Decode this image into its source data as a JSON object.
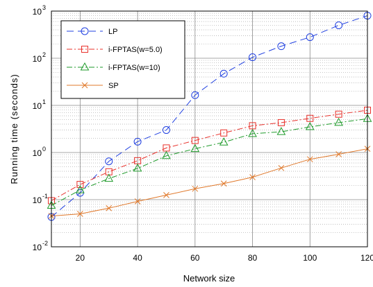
{
  "chart_data": {
    "type": "line",
    "xlabel": "Network size",
    "ylabel": "Running time (seconds)",
    "xlim": [
      10,
      120
    ],
    "ylim": [
      0.01,
      1000
    ],
    "yscale": "log",
    "xticks": [
      20,
      40,
      60,
      80,
      100,
      120
    ],
    "yticks": [
      {
        "base": "10",
        "exp": "-2",
        "value": 0.01
      },
      {
        "base": "10",
        "exp": "-1",
        "value": 0.1
      },
      {
        "base": "10",
        "exp": "0",
        "value": 1
      },
      {
        "base": "10",
        "exp": "1",
        "value": 10
      },
      {
        "base": "10",
        "exp": "2",
        "value": 100
      },
      {
        "base": "10",
        "exp": "3",
        "value": 1000
      }
    ],
    "grid": true,
    "legend_position": "top-left",
    "x": [
      10,
      20,
      30,
      40,
      50,
      60,
      70,
      80,
      90,
      100,
      110,
      120
    ],
    "series": [
      {
        "name": "LP",
        "color": "#1f3fe0",
        "marker": "circle",
        "dash": "10,6",
        "values": [
          0.043,
          0.14,
          0.65,
          1.7,
          3.0,
          16.5,
          47,
          105,
          180,
          280,
          500,
          800
        ]
      },
      {
        "name": "i-FPTAS(w=5.0)",
        "color": "#e8302a",
        "marker": "square",
        "dash": "8,3,2,3",
        "values": [
          0.095,
          0.21,
          0.39,
          0.67,
          1.25,
          1.8,
          2.6,
          3.7,
          4.3,
          5.3,
          6.5,
          7.9
        ]
      },
      {
        "name": "i-FPTAS(w=10)",
        "color": "#1e9a2a",
        "marker": "triangle",
        "dash": "8,3,2,3",
        "values": [
          0.075,
          0.16,
          0.28,
          0.46,
          0.85,
          1.2,
          1.65,
          2.5,
          2.75,
          3.5,
          4.3,
          5.2
        ]
      },
      {
        "name": "SP",
        "color": "#e0782a",
        "marker": "x",
        "dash": "",
        "values": [
          0.045,
          0.05,
          0.066,
          0.092,
          0.125,
          0.17,
          0.22,
          0.3,
          0.47,
          0.72,
          0.92,
          1.2
        ]
      }
    ]
  }
}
